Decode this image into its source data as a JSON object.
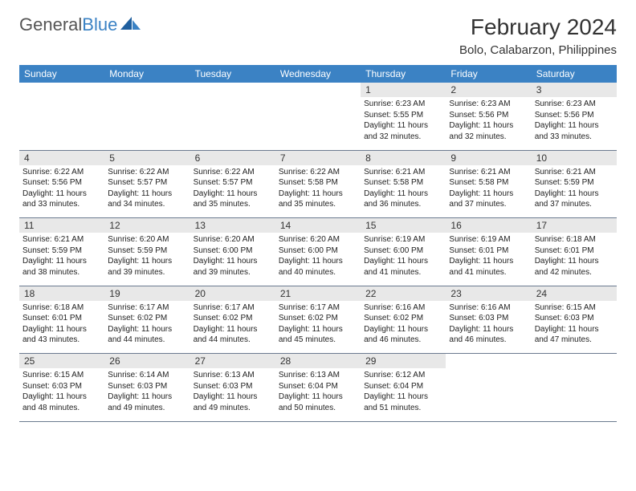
{
  "brand": {
    "name_gray": "General",
    "name_blue": "Blue"
  },
  "title": "February 2024",
  "location": "Bolo, Calabarzon, Philippines",
  "colors": {
    "header_bg": "#3b82c4",
    "header_text": "#ffffff",
    "daynum_bg": "#e8e8e8",
    "rule": "#6b7a8f",
    "logo_blue": "#3b82c4",
    "logo_gray": "#555555"
  },
  "day_names": [
    "Sunday",
    "Monday",
    "Tuesday",
    "Wednesday",
    "Thursday",
    "Friday",
    "Saturday"
  ],
  "weeks": [
    [
      {
        "num": "",
        "lines": []
      },
      {
        "num": "",
        "lines": []
      },
      {
        "num": "",
        "lines": []
      },
      {
        "num": "",
        "lines": []
      },
      {
        "num": "1",
        "lines": [
          "Sunrise: 6:23 AM",
          "Sunset: 5:55 PM",
          "Daylight: 11 hours and 32 minutes."
        ]
      },
      {
        "num": "2",
        "lines": [
          "Sunrise: 6:23 AM",
          "Sunset: 5:56 PM",
          "Daylight: 11 hours and 32 minutes."
        ]
      },
      {
        "num": "3",
        "lines": [
          "Sunrise: 6:23 AM",
          "Sunset: 5:56 PM",
          "Daylight: 11 hours and 33 minutes."
        ]
      }
    ],
    [
      {
        "num": "4",
        "lines": [
          "Sunrise: 6:22 AM",
          "Sunset: 5:56 PM",
          "Daylight: 11 hours and 33 minutes."
        ]
      },
      {
        "num": "5",
        "lines": [
          "Sunrise: 6:22 AM",
          "Sunset: 5:57 PM",
          "Daylight: 11 hours and 34 minutes."
        ]
      },
      {
        "num": "6",
        "lines": [
          "Sunrise: 6:22 AM",
          "Sunset: 5:57 PM",
          "Daylight: 11 hours and 35 minutes."
        ]
      },
      {
        "num": "7",
        "lines": [
          "Sunrise: 6:22 AM",
          "Sunset: 5:58 PM",
          "Daylight: 11 hours and 35 minutes."
        ]
      },
      {
        "num": "8",
        "lines": [
          "Sunrise: 6:21 AM",
          "Sunset: 5:58 PM",
          "Daylight: 11 hours and 36 minutes."
        ]
      },
      {
        "num": "9",
        "lines": [
          "Sunrise: 6:21 AM",
          "Sunset: 5:58 PM",
          "Daylight: 11 hours and 37 minutes."
        ]
      },
      {
        "num": "10",
        "lines": [
          "Sunrise: 6:21 AM",
          "Sunset: 5:59 PM",
          "Daylight: 11 hours and 37 minutes."
        ]
      }
    ],
    [
      {
        "num": "11",
        "lines": [
          "Sunrise: 6:21 AM",
          "Sunset: 5:59 PM",
          "Daylight: 11 hours and 38 minutes."
        ]
      },
      {
        "num": "12",
        "lines": [
          "Sunrise: 6:20 AM",
          "Sunset: 5:59 PM",
          "Daylight: 11 hours and 39 minutes."
        ]
      },
      {
        "num": "13",
        "lines": [
          "Sunrise: 6:20 AM",
          "Sunset: 6:00 PM",
          "Daylight: 11 hours and 39 minutes."
        ]
      },
      {
        "num": "14",
        "lines": [
          "Sunrise: 6:20 AM",
          "Sunset: 6:00 PM",
          "Daylight: 11 hours and 40 minutes."
        ]
      },
      {
        "num": "15",
        "lines": [
          "Sunrise: 6:19 AM",
          "Sunset: 6:00 PM",
          "Daylight: 11 hours and 41 minutes."
        ]
      },
      {
        "num": "16",
        "lines": [
          "Sunrise: 6:19 AM",
          "Sunset: 6:01 PM",
          "Daylight: 11 hours and 41 minutes."
        ]
      },
      {
        "num": "17",
        "lines": [
          "Sunrise: 6:18 AM",
          "Sunset: 6:01 PM",
          "Daylight: 11 hours and 42 minutes."
        ]
      }
    ],
    [
      {
        "num": "18",
        "lines": [
          "Sunrise: 6:18 AM",
          "Sunset: 6:01 PM",
          "Daylight: 11 hours and 43 minutes."
        ]
      },
      {
        "num": "19",
        "lines": [
          "Sunrise: 6:17 AM",
          "Sunset: 6:02 PM",
          "Daylight: 11 hours and 44 minutes."
        ]
      },
      {
        "num": "20",
        "lines": [
          "Sunrise: 6:17 AM",
          "Sunset: 6:02 PM",
          "Daylight: 11 hours and 44 minutes."
        ]
      },
      {
        "num": "21",
        "lines": [
          "Sunrise: 6:17 AM",
          "Sunset: 6:02 PM",
          "Daylight: 11 hours and 45 minutes."
        ]
      },
      {
        "num": "22",
        "lines": [
          "Sunrise: 6:16 AM",
          "Sunset: 6:02 PM",
          "Daylight: 11 hours and 46 minutes."
        ]
      },
      {
        "num": "23",
        "lines": [
          "Sunrise: 6:16 AM",
          "Sunset: 6:03 PM",
          "Daylight: 11 hours and 46 minutes."
        ]
      },
      {
        "num": "24",
        "lines": [
          "Sunrise: 6:15 AM",
          "Sunset: 6:03 PM",
          "Daylight: 11 hours and 47 minutes."
        ]
      }
    ],
    [
      {
        "num": "25",
        "lines": [
          "Sunrise: 6:15 AM",
          "Sunset: 6:03 PM",
          "Daylight: 11 hours and 48 minutes."
        ]
      },
      {
        "num": "26",
        "lines": [
          "Sunrise: 6:14 AM",
          "Sunset: 6:03 PM",
          "Daylight: 11 hours and 49 minutes."
        ]
      },
      {
        "num": "27",
        "lines": [
          "Sunrise: 6:13 AM",
          "Sunset: 6:03 PM",
          "Daylight: 11 hours and 49 minutes."
        ]
      },
      {
        "num": "28",
        "lines": [
          "Sunrise: 6:13 AM",
          "Sunset: 6:04 PM",
          "Daylight: 11 hours and 50 minutes."
        ]
      },
      {
        "num": "29",
        "lines": [
          "Sunrise: 6:12 AM",
          "Sunset: 6:04 PM",
          "Daylight: 11 hours and 51 minutes."
        ]
      },
      {
        "num": "",
        "lines": []
      },
      {
        "num": "",
        "lines": []
      }
    ]
  ]
}
